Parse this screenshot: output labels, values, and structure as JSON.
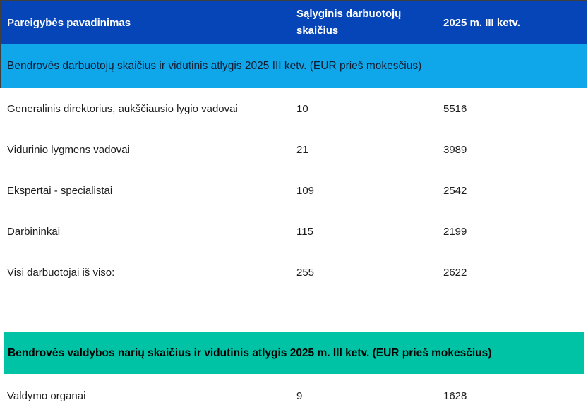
{
  "table": {
    "header": {
      "position_label": "Pareigybės pavadinimas",
      "count_label": "Sąlyginis darbuotojų skaičius",
      "period_label": "2025 m. III ketv."
    },
    "employees_section": {
      "banner": "Bendrovės darbuotojų skaičius ir vidutinis atlygis 2025 III ketv. (EUR prieš mokesčius)",
      "rows": [
        {
          "label": "Generalinis direktorius, aukščiausio lygio vadovai",
          "count": "10",
          "value": "5516"
        },
        {
          "label": "Vidurinio lygmens vadovai",
          "count": "21",
          "value": "3989"
        },
        {
          "label": "Ekspertai - specialistai",
          "count": "109",
          "value": "2542"
        },
        {
          "label": "Darbininkai",
          "count": "115",
          "value": "2199"
        },
        {
          "label": "Visi darbuotojai iš viso:",
          "count": "255",
          "value": "2622"
        }
      ]
    },
    "board_section": {
      "banner": "Bendrovės valdybos narių skaičius ir vidutinis atlygis 2025 m. III ketv. (EUR prieš mokesčius)",
      "rows": [
        {
          "label": "Valdymo organai",
          "count": "9",
          "value": "1628"
        }
      ]
    },
    "colors": {
      "header_bg": "#0645b8",
      "employees_banner_bg": "#0fa7e9",
      "board_banner_bg": "#00c3a6",
      "header_text": "#ffffff",
      "body_text": "#1c1c1c"
    }
  }
}
